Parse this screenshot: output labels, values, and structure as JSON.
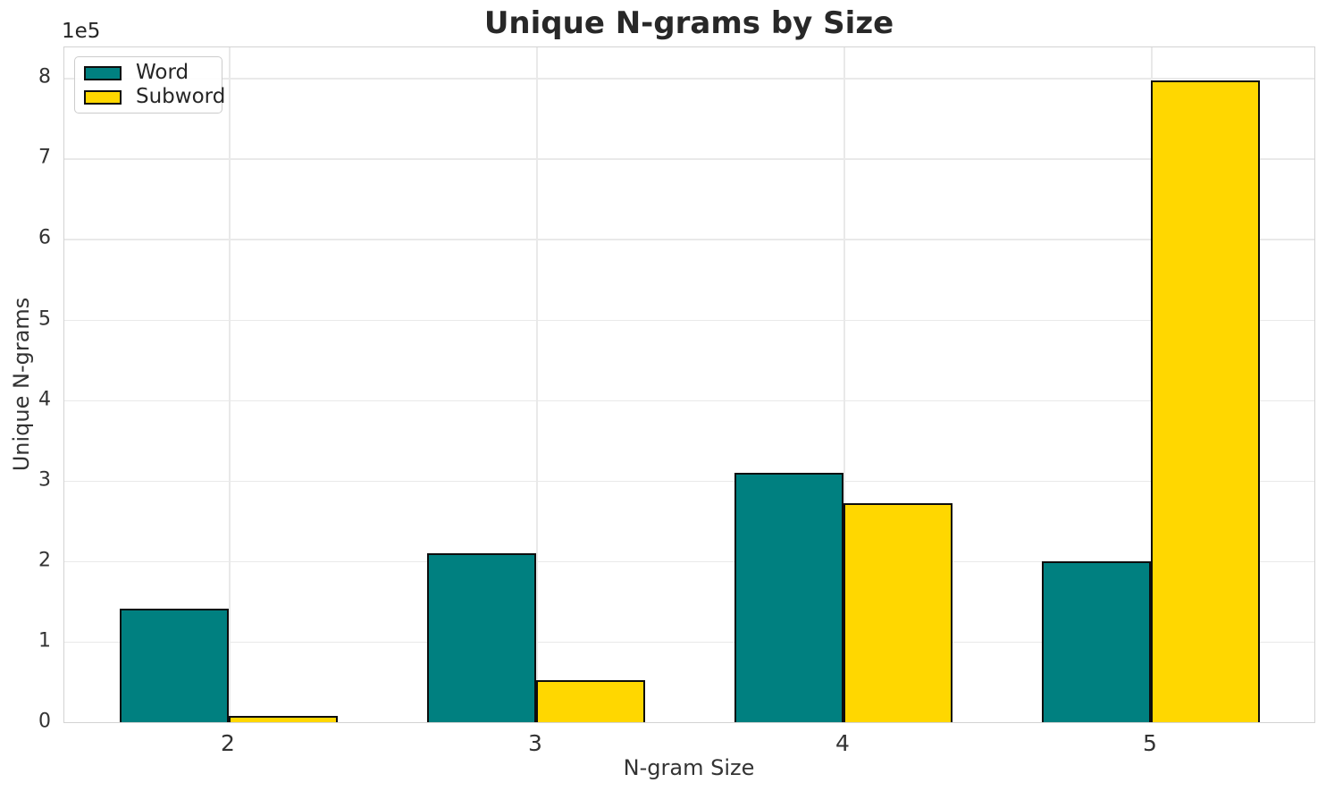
{
  "figure": {
    "title": "Unique N-grams by Size",
    "offset_text": "1e5"
  },
  "chart_data": {
    "type": "bar",
    "title": "Unique N-grams by Size",
    "xlabel": "N-gram Size",
    "ylabel": "Unique N-grams",
    "categories": [
      "2",
      "3",
      "4",
      "5"
    ],
    "series": [
      {
        "name": "Word",
        "color": "#008080",
        "values": [
          141000,
          210000,
          310000,
          200000
        ]
      },
      {
        "name": "Subword",
        "color": "#FFD700",
        "values": [
          8000,
          52000,
          272000,
          797000
        ]
      }
    ],
    "bar_edge_color": "#000000",
    "ylim": [
      0,
      838000
    ],
    "yticks": {
      "values": [
        0,
        100000,
        200000,
        300000,
        400000,
        500000,
        600000,
        700000,
        800000
      ],
      "labels": [
        "0",
        "1",
        "2",
        "3",
        "4",
        "5",
        "6",
        "7",
        "8"
      ]
    },
    "y_scale_offset_label": "1e5",
    "grid": true,
    "legend": {
      "position": "upper left",
      "entries": [
        "Word",
        "Subword"
      ]
    }
  }
}
